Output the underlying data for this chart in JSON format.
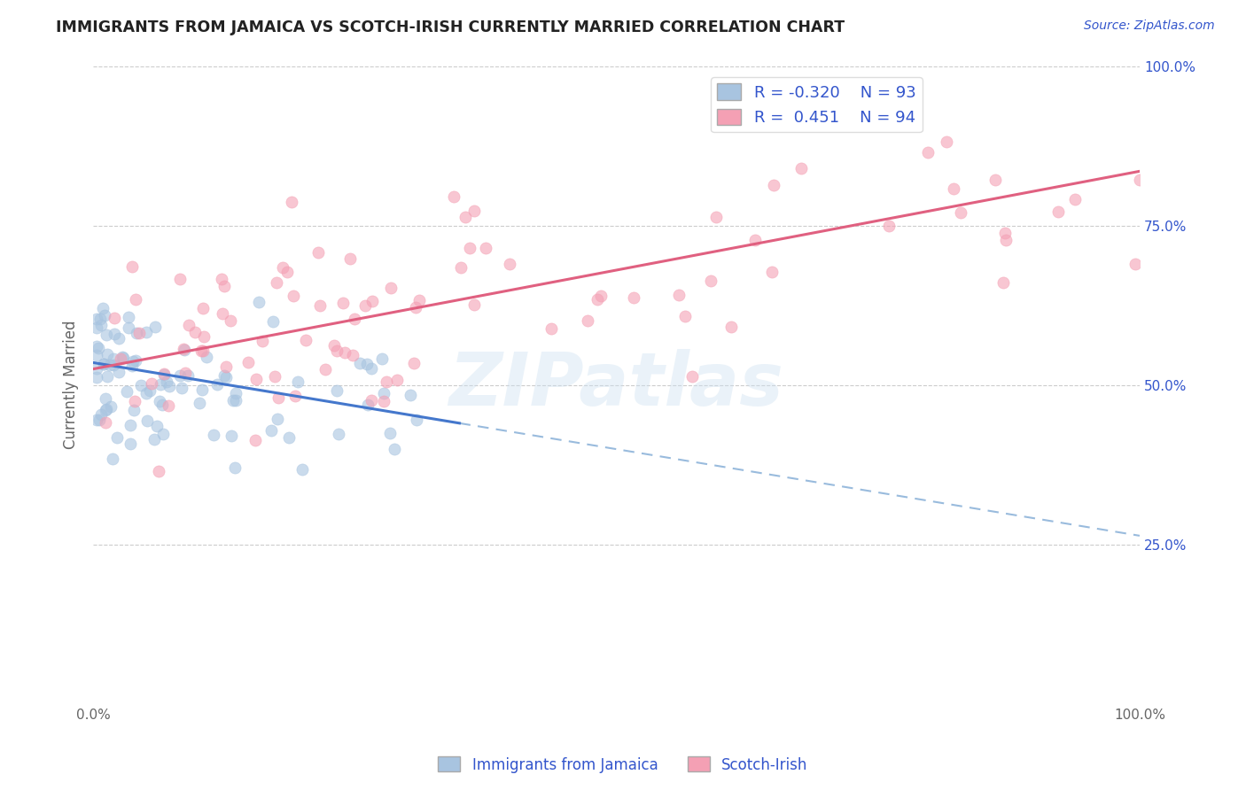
{
  "title": "IMMIGRANTS FROM JAMAICA VS SCOTCH-IRISH CURRENTLY MARRIED CORRELATION CHART",
  "source_text": "Source: ZipAtlas.com",
  "ylabel": "Currently Married",
  "xlim": [
    0.0,
    1.0
  ],
  "ylim": [
    0.0,
    1.0
  ],
  "watermark": "ZIPatlas",
  "legend_r1": "R = -0.320",
  "legend_n1": "N = 93",
  "legend_r2": "R =  0.451",
  "legend_n2": "N = 94",
  "color_jamaica": "#a8c4e0",
  "color_scotch": "#f4a0b4",
  "color_line_jamaica": "#4477cc",
  "color_line_scotch": "#e06080",
  "color_dashed_jamaica": "#99bbdd",
  "grid_color": "#cccccc",
  "title_color": "#222222",
  "legend_text_color": "#3355cc",
  "background_color": "#ffffff",
  "ytick_right_color": "#3355cc",
  "source_color": "#3355cc",
  "label_color": "#666666",
  "bottom_legend_color": "#3355cc",
  "line_jam_x0": 0.0,
  "line_jam_y0": 0.535,
  "line_jam_x1": 0.35,
  "line_jam_y1": 0.44,
  "line_scotch_x0": 0.0,
  "line_scotch_y0": 0.525,
  "line_scotch_x1": 1.0,
  "line_scotch_y1": 0.835
}
